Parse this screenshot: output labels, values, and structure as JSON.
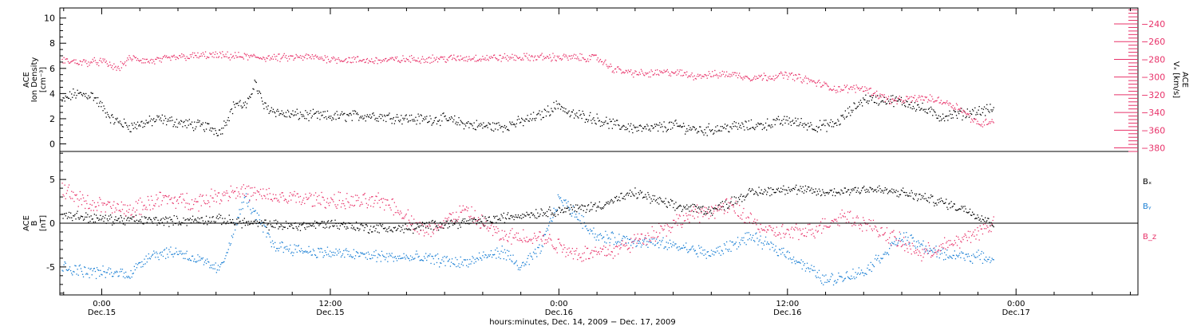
{
  "chart_data": [
    {
      "type": "scatter",
      "panel": "top",
      "left_axis": {
        "label_lines": [
          "ACE",
          "Ion Density",
          "[cm⁻³]"
        ],
        "ylim": [
          -0.6,
          10.8
        ],
        "ticks": [
          0,
          2,
          4,
          6,
          8,
          10
        ]
      },
      "right_axis": {
        "label_lines": [
          "ACE",
          "Vₓ [km/s]"
        ],
        "ylim": [
          -384,
          -222
        ],
        "major_ticks": [
          -380,
          -360,
          -340,
          -320,
          -300,
          -280,
          -260,
          -240
        ],
        "tick_labels": [
          "−380",
          "−360",
          "−340",
          "−320",
          "−300",
          "−280",
          "−260",
          "−240"
        ]
      },
      "series": [
        {
          "name": "Ion Density",
          "axis": "left",
          "color": "#000000",
          "knots_x": [
            -2.1,
            -1.5,
            -0.5,
            0.5,
            1.5,
            3,
            4.5,
            5.5,
            6.2,
            7,
            7.6,
            8,
            8.5,
            9.5,
            12,
            14,
            16.5,
            18,
            19.5,
            21,
            22,
            23,
            24,
            24.5,
            25.5,
            27,
            28.5,
            30,
            31.5,
            33,
            34.5,
            36,
            37.5,
            38.5,
            40,
            41.5,
            42.5,
            44,
            45.5,
            46.8
          ],
          "knots_y": [
            3.4,
            4,
            3.9,
            2,
            1.4,
            2,
            1.6,
            1.4,
            1,
            3.3,
            3,
            5,
            3,
            2.4,
            2.2,
            2.3,
            2,
            2,
            1.5,
            1.4,
            1.8,
            2.3,
            3.2,
            2.4,
            2.2,
            1.5,
            1.2,
            1.5,
            1.1,
            1.4,
            1.5,
            1.9,
            1.4,
            1.6,
            3.6,
            3.5,
            3.2,
            2.2,
            2.5,
            2.8
          ]
        },
        {
          "name": "Vₓ",
          "axis": "right",
          "color": "#e8336a",
          "knots_x": [
            -2.1,
            -1,
            0,
            0.8,
            1.5,
            2.5,
            4,
            5.5,
            7,
            9,
            11,
            12,
            14,
            17,
            20,
            23,
            26,
            26.8,
            27.5,
            28.5,
            30,
            31,
            33,
            34,
            35,
            36,
            37.5,
            38.5,
            40,
            41.5,
            43,
            44,
            45,
            46,
            46.8
          ],
          "knots_y": [
            -281,
            -283,
            -282,
            -290,
            -278,
            -282,
            -277,
            -275,
            -276,
            -278,
            -277,
            -279,
            -281,
            -279,
            -278,
            -277,
            -278,
            -290,
            -294,
            -296,
            -294,
            -298,
            -296,
            -300,
            -299,
            -297,
            -306,
            -313,
            -312,
            -327,
            -323,
            -326,
            -334,
            -353,
            -348
          ]
        }
      ]
    },
    {
      "type": "scatter",
      "panel": "bottom",
      "left_axis": {
        "label_lines": [
          "ACE",
          "B",
          "[nT]"
        ],
        "ylim": [
          -8.2,
          8.2
        ],
        "ticks": [
          -5,
          0,
          5
        ]
      },
      "zero_line": true,
      "legend_placement": "right",
      "series": [
        {
          "name": "Bₓ",
          "color": "#000000",
          "knots_x": [
            -2.1,
            -1,
            0,
            2,
            4,
            6,
            8,
            10,
            12,
            14,
            16,
            18,
            20,
            22,
            24,
            26,
            28,
            30,
            32,
            34,
            36,
            38,
            40,
            42,
            44,
            45.5,
            46.8
          ],
          "knots_y": [
            1,
            0.8,
            0.5,
            0.4,
            0.3,
            0.5,
            0,
            -0.3,
            0,
            -0.5,
            -0.6,
            0,
            0.3,
            1,
            1.5,
            2,
            3.5,
            2,
            1.5,
            3.5,
            4,
            3.5,
            4,
            3.5,
            2.5,
            1.5,
            0
          ]
        },
        {
          "name": "Bᵧ",
          "color": "#1a7fd4",
          "knots_x": [
            -2.1,
            -1,
            0,
            1.5,
            2.5,
            4,
            6.2,
            7.5,
            9,
            11,
            13,
            15,
            17,
            19,
            21,
            22,
            23,
            24,
            26,
            28,
            30,
            32,
            34,
            36,
            38,
            40,
            42,
            44,
            46,
            46.8
          ],
          "knots_y": [
            -5,
            -5.4,
            -5.6,
            -5.7,
            -3.5,
            -3.2,
            -5.3,
            3,
            -2.5,
            -3.2,
            -3.5,
            -3.8,
            -4,
            -4.5,
            -3.2,
            -5,
            -3,
            3,
            -1.5,
            -2,
            -2.5,
            -3.5,
            -1.5,
            -3.5,
            -6.5,
            -5.5,
            -1.5,
            -3.5,
            -3.8,
            -4
          ]
        },
        {
          "name": "B_z",
          "color": "#e8336a",
          "knots_x": [
            -2.1,
            -1,
            0,
            1.5,
            3,
            5,
            7,
            9,
            11,
            13,
            15,
            17,
            19,
            21,
            23,
            25,
            27,
            29,
            31,
            33,
            35,
            37,
            39,
            41,
            43,
            45,
            46.8
          ],
          "knots_y": [
            4,
            2.5,
            2,
            1.5,
            2.8,
            2.5,
            3.8,
            3,
            2.8,
            2.5,
            2.5,
            -1,
            1.5,
            -1.5,
            -1.5,
            -3.5,
            -3,
            -1,
            1,
            2,
            -1,
            -1,
            1,
            -1,
            -3.5,
            -2,
            0
          ]
        }
      ]
    }
  ],
  "x_axis": {
    "domain_hours": [
      -2.2,
      54.4
    ],
    "ticks": [
      {
        "hours": 0,
        "time": "0:00",
        "date": "Dec.15"
      },
      {
        "hours": 12,
        "time": "12:00",
        "date": "Dec.15"
      },
      {
        "hours": 24,
        "time": "0:00",
        "date": "Dec.16"
      },
      {
        "hours": 36,
        "time": "12:00",
        "date": "Dec.16"
      },
      {
        "hours": 48,
        "time": "0:00",
        "date": "Dec.17"
      }
    ],
    "title": "hours:minutes, Dec. 14, 2009 − Dec. 17, 2009"
  }
}
